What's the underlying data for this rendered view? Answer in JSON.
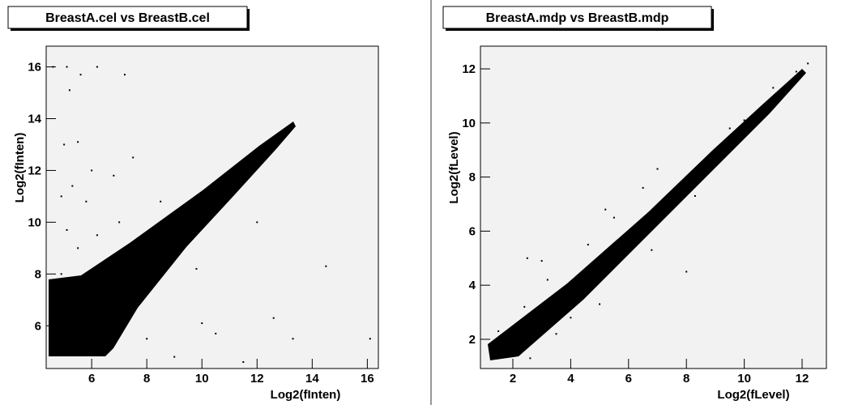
{
  "chart_data": [
    {
      "type": "scatter",
      "title": "BreastA.cel vs BreastB.cel",
      "x_label": "Log2(fInten)",
      "y_label": "Log2(fInten)",
      "xlim": [
        4.35,
        16.4
      ],
      "ylim": [
        4.35,
        16.8
      ],
      "xticks": [
        6,
        8,
        10,
        12,
        14,
        16
      ],
      "yticks": [
        6,
        8,
        10,
        12,
        14,
        16
      ],
      "color": "#000000",
      "x": [
        4.6,
        5.1,
        6.2,
        5.6,
        7.2,
        5.2,
        5,
        5.5,
        7.5,
        6,
        5.3,
        4.9,
        6.8,
        5.8,
        7,
        6.2,
        5.5,
        8.5,
        10,
        10.5,
        12.6,
        13.3,
        16.1,
        14.5,
        9,
        11.5,
        8,
        7.5,
        9.8,
        12,
        6.5,
        4.9,
        5,
        5.1,
        11,
        13,
        9,
        8,
        7,
        10
      ],
      "y": [
        16,
        16,
        16,
        15.7,
        15.7,
        15.1,
        13,
        13.1,
        12.5,
        12,
        11.4,
        11,
        11.8,
        10.8,
        10,
        9.5,
        9,
        10.8,
        6.1,
        5.7,
        6.3,
        5.5,
        5.5,
        8.3,
        4.8,
        4.6,
        5.5,
        7,
        8.2,
        10,
        7.5,
        8,
        7,
        9.7,
        11,
        13.5,
        9.2,
        8.6,
        7.4,
        10
      ]
    },
    {
      "type": "scatter",
      "title": "BreastA.mdp vs BreastB.mdp",
      "x_label": "Log2(fLevel)",
      "y_label": "Log2(fLevel)",
      "xlim": [
        0.88,
        12.84
      ],
      "ylim": [
        0.92,
        12.84
      ],
      "xticks": [
        2,
        4,
        6,
        8,
        10,
        12
      ],
      "yticks": [
        2,
        4,
        6,
        8,
        10,
        12
      ],
      "color": "#000000",
      "x": [
        12.2,
        11.8,
        11,
        10.5,
        9.5,
        7,
        6.5,
        5.5,
        4.6,
        5.2,
        6.8,
        7.2,
        8.3,
        3.2,
        2.4,
        1.5,
        1.4,
        2.6,
        4,
        5,
        3,
        2.5,
        8,
        9,
        3.5,
        6,
        4,
        2,
        8,
        10
      ],
      "y": [
        12.2,
        11.9,
        11.3,
        10.4,
        9.8,
        8.3,
        7.6,
        6.5,
        5.5,
        6.8,
        5.3,
        6.5,
        7.3,
        4.2,
        3.2,
        2.3,
        1.6,
        1.3,
        2.8,
        3.3,
        4.9,
        5,
        4.5,
        8.7,
        2.2,
        6,
        4,
        2,
        8,
        10.1
      ]
    }
  ]
}
